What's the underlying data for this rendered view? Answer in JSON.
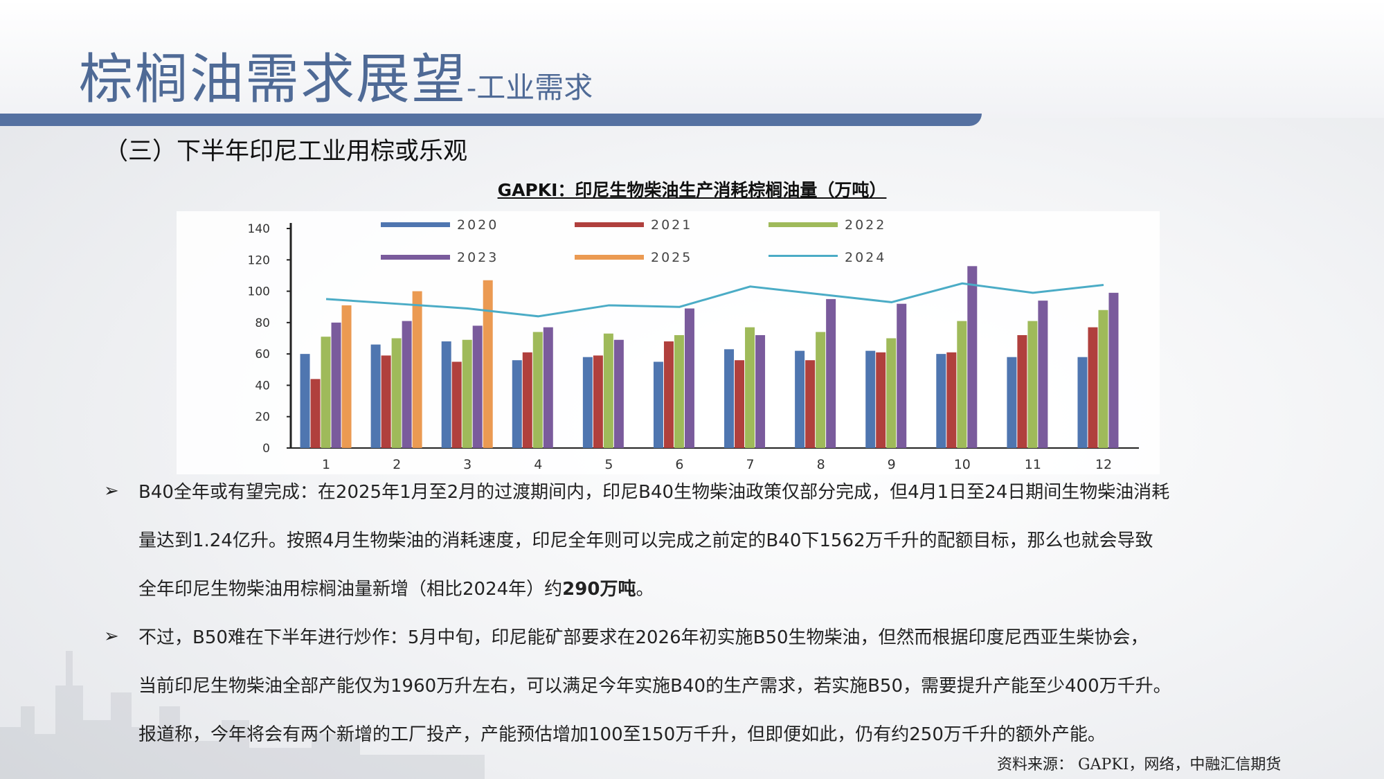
{
  "header": {
    "title_main": "棕榈油需求展望",
    "title_sub": "-工业需求"
  },
  "subtitle": "（三）下半年印尼工业用棕或乐观",
  "chart_title": "GAPKI：印尼生物柴油生产消耗棕榈油量（万吨）",
  "paragraphs": [
    {
      "bullet": "➢",
      "lines": [
        "B40全年或有望完成：在2025年1月至2月的过渡期间内，印尼B40生物柴油政策仅部分完成，但4月1日至24日期间生物柴油消耗",
        "量达到1.24亿升。按照4月生物柴油的消耗速度，印尼全年则可以完成之前定的B40下1562万千升的配额目标，那么也就会导致"
      ],
      "line3_pre": "全年印尼生物柴油用棕榈油量新增（相比2024年）约",
      "line3_bold": "290万吨",
      "line3_post": "。"
    },
    {
      "bullet": "➢",
      "lines": [
        "不过，B50难在下半年进行炒作：5月中旬，印尼能矿部要求在2026年初实施B50生物柴油，但然而根据印度尼西亚生柴协会，",
        "当前印尼生物柴油全部产能仅为1960万升左右，可以满足今年实施B40的生产需求，若实施B50，需要提升产能至少400万千升。",
        "报道称，今年将会有两个新增的工厂投产，产能预估增加100至150万千升，但即便如此，仍有约250万千升的额外产能。"
      ]
    }
  ],
  "source": "资料来源：  GAPKI，网络，中融汇信期货",
  "chart_data": {
    "type": "bar",
    "categories": [
      "1",
      "2",
      "3",
      "4",
      "5",
      "6",
      "7",
      "8",
      "9",
      "10",
      "11",
      "12"
    ],
    "ylim": [
      0,
      140
    ],
    "yticks": [
      0,
      20,
      40,
      60,
      80,
      100,
      120,
      140
    ],
    "series": [
      {
        "name": "2020",
        "type": "bar",
        "color": "#4f76b0",
        "values": [
          60,
          66,
          68,
          56,
          58,
          55,
          63,
          62,
          62,
          60,
          58,
          58
        ]
      },
      {
        "name": "2021",
        "type": "bar",
        "color": "#b0403d",
        "values": [
          44,
          59,
          55,
          61,
          59,
          68,
          56,
          56,
          61,
          61,
          72,
          77
        ]
      },
      {
        "name": "2022",
        "type": "bar",
        "color": "#9fba5a",
        "values": [
          71,
          70,
          69,
          74,
          73,
          72,
          77,
          74,
          70,
          81,
          81,
          88
        ]
      },
      {
        "name": "2023",
        "type": "bar",
        "color": "#7a5b9c",
        "values": [
          80,
          81,
          78,
          77,
          69,
          89,
          72,
          95,
          92,
          116,
          94,
          99
        ]
      },
      {
        "name": "2025",
        "type": "bar",
        "color": "#eb9a52",
        "values": [
          91,
          100,
          107,
          null,
          null,
          null,
          null,
          null,
          null,
          null,
          null,
          null
        ]
      },
      {
        "name": "2024",
        "type": "line",
        "color": "#4bacc6",
        "values": [
          95,
          92,
          89,
          84,
          91,
          90,
          103,
          98,
          93,
          105,
          99,
          104
        ]
      }
    ],
    "legend": "top",
    "grid": false
  }
}
